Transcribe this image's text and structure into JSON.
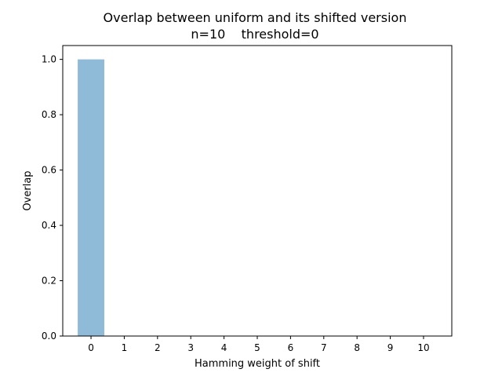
{
  "chart_data": {
    "type": "bar",
    "title_line1": "Overlap between uniform and its shifted version",
    "title_line2": "n=10    threshold=0",
    "xlabel": "Hamming weight of shift",
    "ylabel": "Overlap",
    "categories": [
      "0",
      "1",
      "2",
      "3",
      "4",
      "5",
      "6",
      "7",
      "8",
      "9",
      "10"
    ],
    "values": [
      1.0,
      0,
      0,
      0,
      0,
      0,
      0,
      0,
      0,
      0,
      0
    ],
    "yticks": [
      "0.0",
      "0.2",
      "0.4",
      "0.6",
      "0.8",
      "1.0"
    ],
    "ylim": [
      0,
      1.05
    ],
    "bar_color": "#1f77b4",
    "bar_alpha": 0.5,
    "grid": false,
    "legend": false
  }
}
